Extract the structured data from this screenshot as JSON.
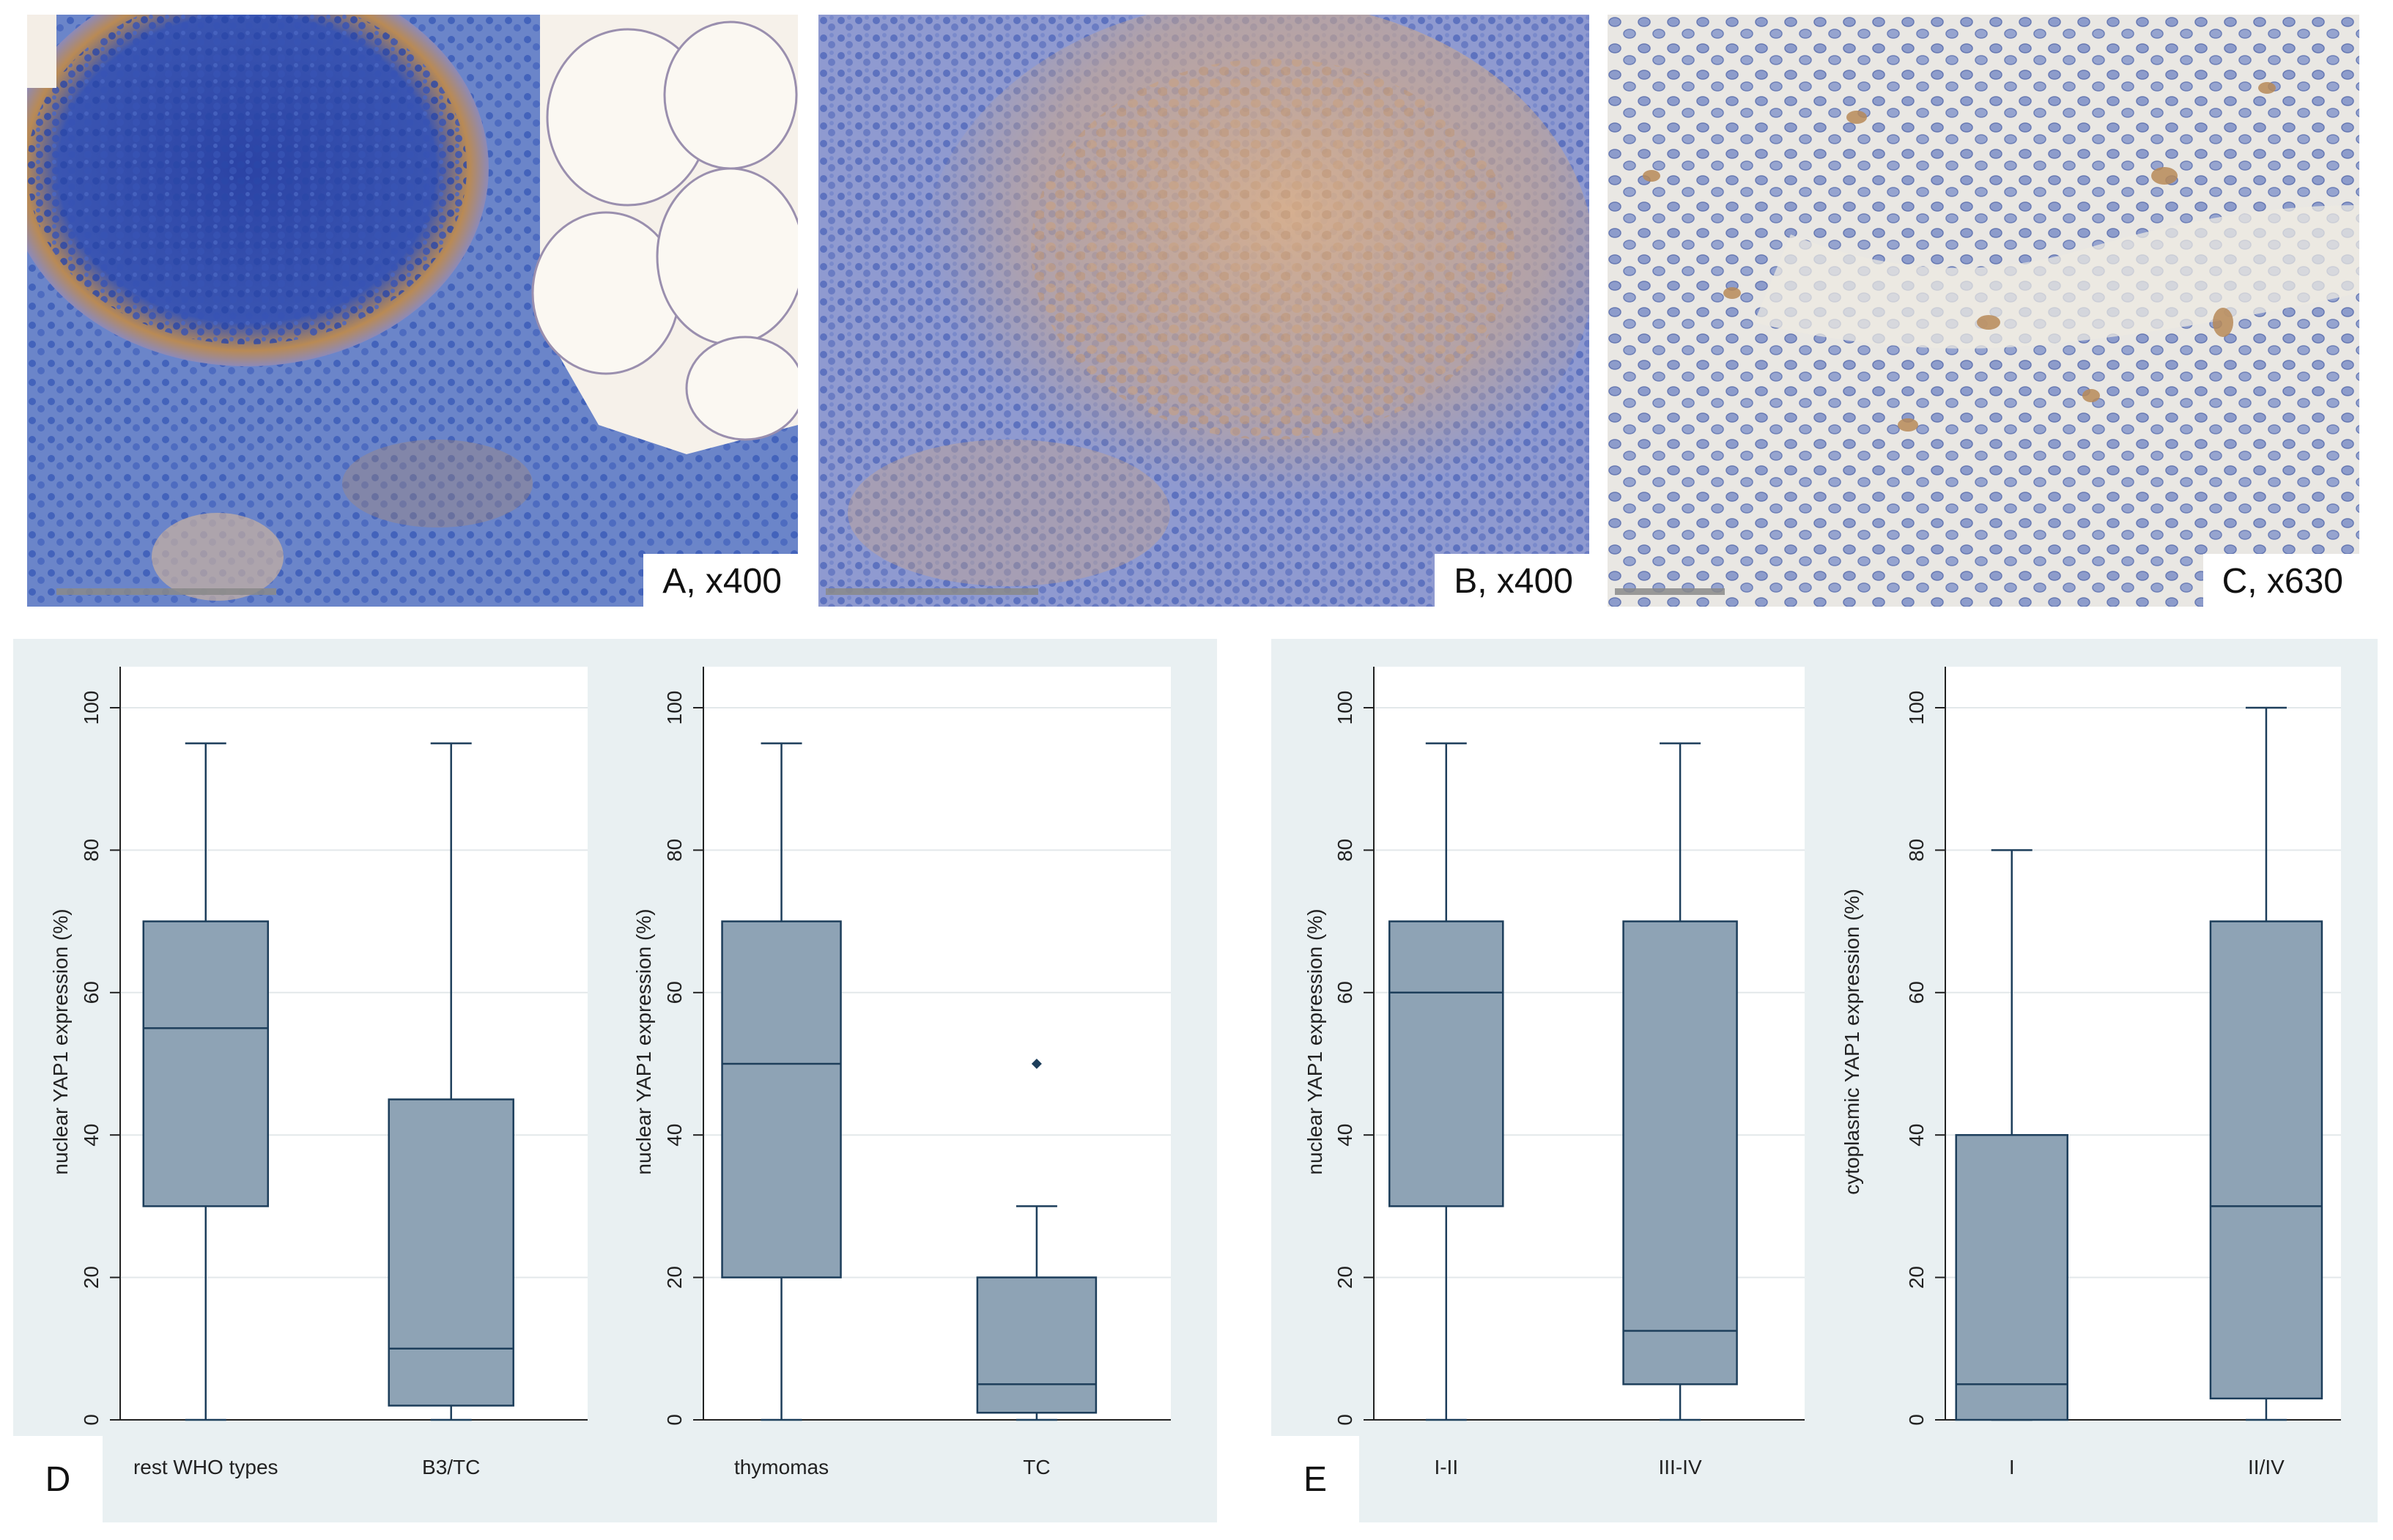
{
  "micrographs": [
    {
      "label": "A, x400"
    },
    {
      "label": "B, x400"
    },
    {
      "label": "C, x630"
    }
  ],
  "panels": [
    {
      "letter": "D"
    },
    {
      "letter": "E"
    }
  ],
  "colors": {
    "box_fill": "#8ea3b5",
    "box_stroke": "#1d3e5b",
    "panel_background": "#e9f0f2",
    "plot_background": "#ffffff",
    "gridline": "#e3e8ea"
  },
  "chart_data": [
    {
      "type": "box",
      "ylabel": "nuclear YAP1 expression (%)",
      "ylim": [
        0,
        100
      ],
      "yticks": [
        0,
        20,
        40,
        60,
        80,
        100
      ],
      "categories": [
        "rest WHO types",
        "B3/TC"
      ],
      "boxes": [
        {
          "whisker_low": 0,
          "q1": 30,
          "median": 55,
          "q3": 70,
          "whisker_high": 95,
          "outliers": []
        },
        {
          "whisker_low": 0,
          "q1": 2,
          "median": 10,
          "q3": 45,
          "whisker_high": 95,
          "outliers": []
        }
      ]
    },
    {
      "type": "box",
      "ylabel": "nuclear YAP1 expression (%)",
      "ylim": [
        0,
        100
      ],
      "yticks": [
        0,
        20,
        40,
        60,
        80,
        100
      ],
      "categories": [
        "thymomas",
        "TC"
      ],
      "boxes": [
        {
          "whisker_low": 0,
          "q1": 20,
          "median": 50,
          "q3": 70,
          "whisker_high": 95,
          "outliers": []
        },
        {
          "whisker_low": 0,
          "q1": 1,
          "median": 5,
          "q3": 20,
          "whisker_high": 30,
          "outliers": [
            50
          ]
        }
      ]
    },
    {
      "type": "box",
      "ylabel": "nuclear YAP1 expression (%)",
      "ylim": [
        0,
        100
      ],
      "yticks": [
        0,
        20,
        40,
        60,
        80,
        100
      ],
      "categories": [
        "I-II",
        "III-IV"
      ],
      "boxes": [
        {
          "whisker_low": 0,
          "q1": 30,
          "median": 60,
          "q3": 70,
          "whisker_high": 95,
          "outliers": []
        },
        {
          "whisker_low": 0,
          "q1": 5,
          "median": 12.5,
          "q3": 70,
          "whisker_high": 95,
          "outliers": []
        }
      ]
    },
    {
      "type": "box",
      "ylabel": "cytoplasmic YAP1 expression (%)",
      "ylim": [
        0,
        100
      ],
      "yticks": [
        0,
        20,
        40,
        60,
        80,
        100
      ],
      "categories": [
        "I",
        "II/IV"
      ],
      "boxes": [
        {
          "whisker_low": 0,
          "q1": 0,
          "median": 5,
          "q3": 40,
          "whisker_high": 80,
          "outliers": []
        },
        {
          "whisker_low": 0,
          "q1": 3,
          "median": 30,
          "q3": 70,
          "whisker_high": 100,
          "outliers": []
        }
      ]
    }
  ]
}
